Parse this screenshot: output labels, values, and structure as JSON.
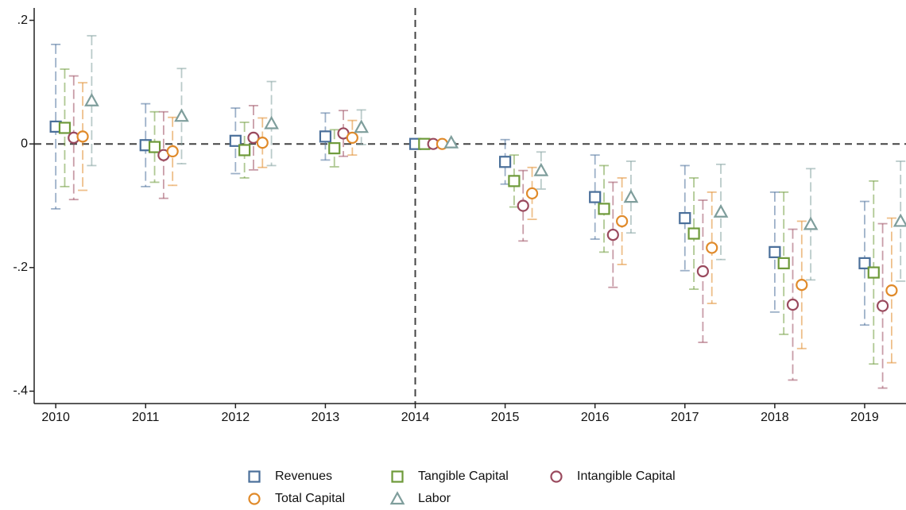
{
  "chart_data": {
    "type": "errorbar",
    "x": [
      2010,
      2011,
      2012,
      2013,
      2014,
      2015,
      2016,
      2017,
      2018,
      2019
    ],
    "xlim": [
      2009.76,
      2019.46
    ],
    "xticks": [
      2010,
      2011,
      2012,
      2013,
      2014,
      2015,
      2016,
      2017,
      2018,
      2019
    ],
    "ylim": [
      -0.42,
      0.22
    ],
    "yticks": [
      {
        "value": 0.2,
        "label": ".2"
      },
      0,
      {
        "value": -0.2,
        "label": "-.2"
      },
      {
        "value": -0.4,
        "label": "-.4"
      }
    ],
    "reference_lines": {
      "x": 2014,
      "y": 0
    },
    "series": [
      {
        "name": "Revenues",
        "color": "#4a6f9a",
        "marker": "square",
        "values": [
          0.028,
          -0.002,
          0.005,
          0.012,
          0,
          -0.029,
          -0.086,
          -0.12,
          -0.175,
          -0.193
        ],
        "errors": [
          0.133,
          0.067,
          0.053,
          0.038,
          0,
          0.036,
          0.068,
          0.085,
          0.097,
          0.1
        ]
      },
      {
        "name": "Tangible Capital",
        "color": "#6e9a3a",
        "marker": "square",
        "values": [
          0.026,
          -0.005,
          -0.01,
          -0.007,
          0,
          -0.06,
          -0.105,
          -0.145,
          -0.193,
          -0.208
        ],
        "errors": [
          0.095,
          0.057,
          0.045,
          0.03,
          0,
          0.042,
          0.07,
          0.09,
          0.115,
          0.148
        ]
      },
      {
        "name": "Intangible Capital",
        "color": "#9a4a5e",
        "marker": "circle",
        "values": [
          0.01,
          -0.018,
          0.01,
          0.017,
          0,
          -0.1,
          -0.147,
          -0.206,
          -0.26,
          -0.262
        ],
        "errors": [
          0.1,
          0.07,
          0.052,
          0.037,
          0,
          0.057,
          0.085,
          0.115,
          0.122,
          0.133
        ]
      },
      {
        "name": "Total Capital",
        "color": "#e08a2a",
        "marker": "circle",
        "values": [
          0.012,
          -0.012,
          0.002,
          0.01,
          0,
          -0.08,
          -0.125,
          -0.168,
          -0.228,
          -0.237
        ],
        "errors": [
          0.087,
          0.055,
          0.04,
          0.028,
          0,
          0.042,
          0.07,
          0.09,
          0.103,
          0.117
        ]
      },
      {
        "name": "Labor",
        "color": "#7f9e9c",
        "marker": "triangle",
        "values": [
          0.07,
          0.045,
          0.033,
          0.027,
          0.002,
          -0.043,
          -0.086,
          -0.11,
          -0.13,
          -0.125
        ],
        "errors": [
          0.105,
          0.077,
          0.068,
          0.028,
          0,
          0.03,
          0.058,
          0.077,
          0.09,
          0.097
        ]
      }
    ]
  }
}
